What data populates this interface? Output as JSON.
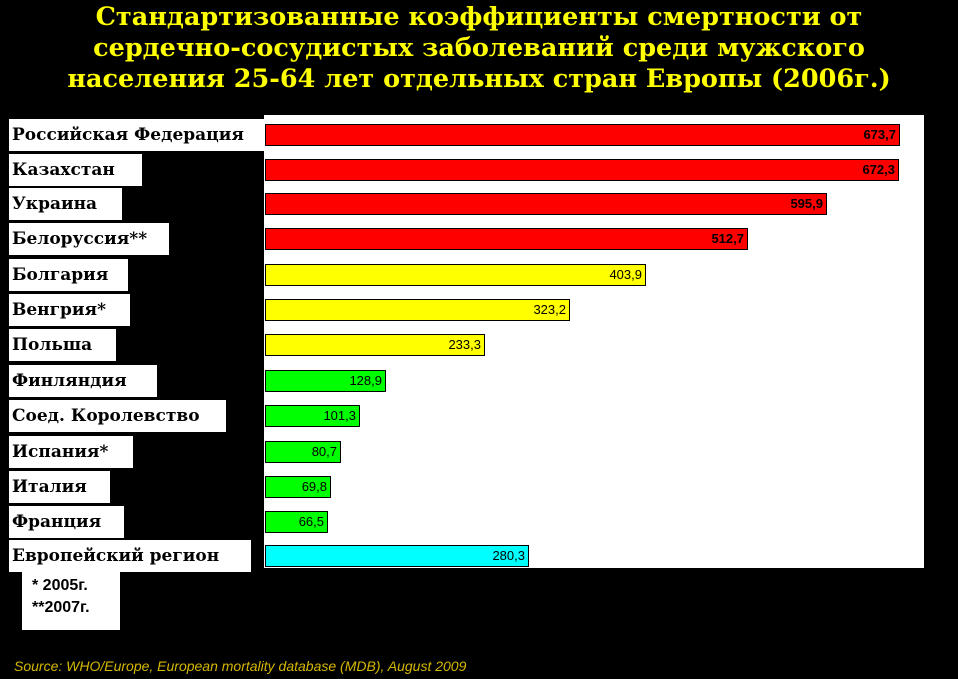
{
  "title_lines": [
    "Стандартизованные коэффициенты смертности от",
    "сердечно-сосудистых заболеваний среди  мужского",
    "населения 25-64 лет отдельных стран Европы (2006г.)"
  ],
  "chart_data": {
    "type": "bar",
    "orientation": "horizontal",
    "title": "Стандартизованные коэффициенты смертности от сердечно-сосудистых заболеваний среди  мужского населения 25-64 лет отдельных стран Европы (2006г.)",
    "categories": [
      "Российская Федерация",
      "Казахстан",
      "Украина",
      "Белоруссия**",
      "Болгария",
      "Венгрия*",
      "Польша",
      "Финляндия",
      "Соед. Королевство",
      "Испания*",
      "Италия",
      "Франция",
      "Европейский регион"
    ],
    "values": [
      673.7,
      672.3,
      595.9,
      512.7,
      403.9,
      323.2,
      233.3,
      128.9,
      101.3,
      80.7,
      69.8,
      66.5,
      280.3
    ],
    "value_labels": [
      "673,7",
      "672,3",
      "595,9",
      "512,7",
      "403,9",
      "323,2",
      "233,3",
      "128,9",
      "101,3",
      "80,7",
      "69,8",
      "66,5",
      "280,3"
    ],
    "bar_colors": [
      "#FF0000",
      "#FF0000",
      "#FF0000",
      "#FF0000",
      "#FFFF00",
      "#FFFF00",
      "#FFFF00",
      "#00FF00",
      "#00FF00",
      "#00FF00",
      "#00FF00",
      "#00FF00",
      "#00FFFF"
    ],
    "xlim": [
      0,
      673.7
    ],
    "grid": false,
    "legend": "none"
  },
  "colors": {
    "background": "#000000",
    "title": "#FFFF00",
    "source": "#D4B800"
  },
  "footnotes": [
    "* 2005г.",
    "**2007г."
  ],
  "source": "Source: WHO/Europe, European mortality database (MDB), August  2009"
}
